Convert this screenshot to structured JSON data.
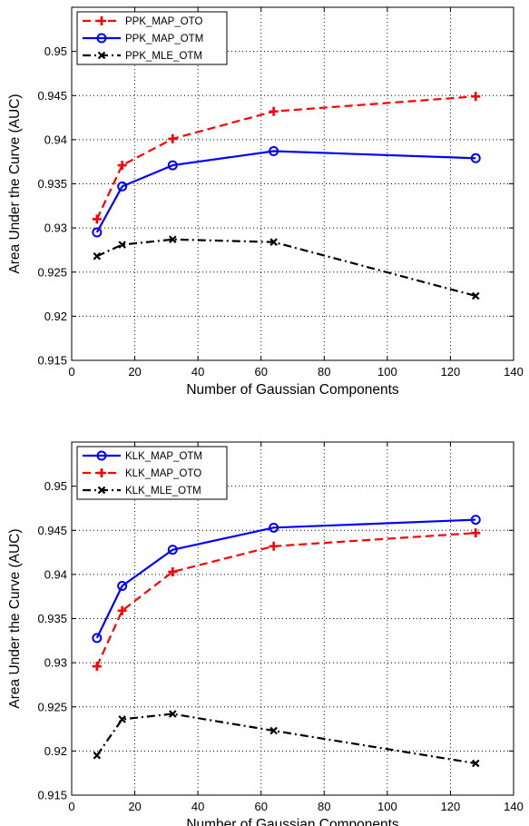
{
  "chart_data": [
    {
      "type": "line",
      "xlabel": "Number of Gaussian Components",
      "ylabel": "Area Under the Curve (AUC)",
      "xlim": [
        0,
        140
      ],
      "ylim": [
        0.915,
        0.955
      ],
      "xticks": [
        0,
        20,
        40,
        60,
        80,
        100,
        120,
        140
      ],
      "yticks": [
        0.915,
        0.92,
        0.925,
        0.93,
        0.935,
        0.94,
        0.945,
        0.95
      ],
      "xtick_labels": [
        "0",
        "20",
        "40",
        "60",
        "80",
        "100",
        "120",
        "140"
      ],
      "ytick_labels": [
        "0.915",
        "0.92",
        "0.925",
        "0.93",
        "0.935",
        "0.94",
        "0.945",
        "0.95"
      ],
      "grid": true,
      "legend_position": "top-left",
      "x": [
        8,
        16,
        32,
        64,
        128
      ],
      "series": [
        {
          "name": "PPK_MAP_OTO",
          "values": [
            0.931,
            0.9371,
            0.9401,
            0.9432,
            0.9449
          ],
          "color": "#ff0000",
          "line_style": "dashed",
          "marker": "plus"
        },
        {
          "name": "PPK_MAP_OTM",
          "values": [
            0.9295,
            0.9347,
            0.9371,
            0.9387,
            0.9379
          ],
          "color": "#0000ff",
          "line_style": "solid",
          "marker": "circle"
        },
        {
          "name": "PPK_MLE_OTM",
          "values": [
            0.9268,
            0.9281,
            0.9287,
            0.9284,
            0.9223
          ],
          "color": "#000000",
          "line_style": "dashdot",
          "marker": "x"
        }
      ]
    },
    {
      "type": "line",
      "xlabel": "Number of Gaussian Components",
      "ylabel": "Area Under the Curve (AUC)",
      "xlim": [
        0,
        140
      ],
      "ylim": [
        0.915,
        0.955
      ],
      "xticks": [
        0,
        20,
        40,
        60,
        80,
        100,
        120,
        140
      ],
      "yticks": [
        0.915,
        0.92,
        0.925,
        0.93,
        0.935,
        0.94,
        0.945,
        0.95
      ],
      "xtick_labels": [
        "0",
        "20",
        "40",
        "60",
        "80",
        "100",
        "120",
        "140"
      ],
      "ytick_labels": [
        "0.915",
        "0.92",
        "0.925",
        "0.93",
        "0.935",
        "0.94",
        "0.945",
        "0.95"
      ],
      "grid": true,
      "legend_position": "top-left",
      "x": [
        8,
        16,
        32,
        64,
        128
      ],
      "series": [
        {
          "name": "KLK_MAP_OTM",
          "values": [
            0.9328,
            0.9387,
            0.9428,
            0.9453,
            0.9462
          ],
          "color": "#0000ff",
          "line_style": "solid",
          "marker": "circle"
        },
        {
          "name": "KLK_MAP_OTO",
          "values": [
            0.9296,
            0.9359,
            0.9403,
            0.9432,
            0.9447
          ],
          "color": "#ff0000",
          "line_style": "dashed",
          "marker": "plus"
        },
        {
          "name": "KLK_MLE_OTM",
          "values": [
            0.9195,
            0.9236,
            0.9242,
            0.9223,
            0.9186
          ],
          "color": "#000000",
          "line_style": "dashdot",
          "marker": "x"
        }
      ]
    }
  ]
}
